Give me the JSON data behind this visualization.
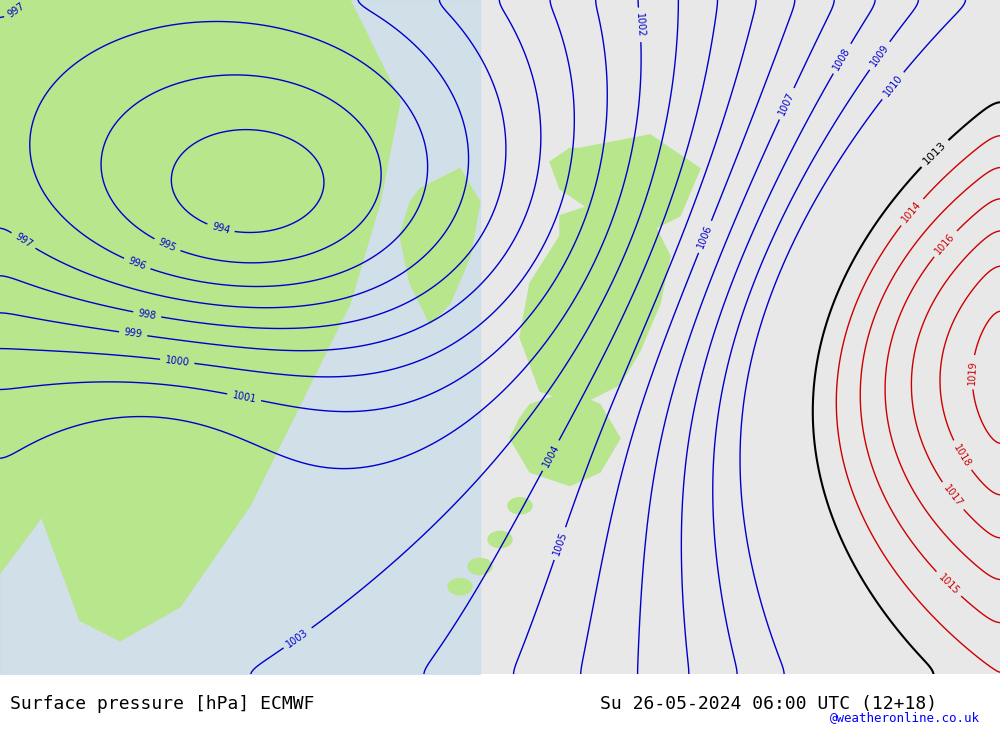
{
  "title_left": "Surface pressure [hPa] ECMWF",
  "title_right": "Su 26-05-2024 06:00 UTC (12+18)",
  "credit": "@weatheronline.co.uk",
  "bg_color_land": "#b8e68c",
  "bg_color_sea_left": "#d0e8f0",
  "bg_color_sea_right": "#e8e8e8",
  "contour_blue_color": "#0000cc",
  "contour_black_color": "#000000",
  "contour_red_color": "#cc0000",
  "bottom_bar_color": "#d8d8d8",
  "figsize": [
    10.0,
    7.33
  ],
  "dpi": 100
}
